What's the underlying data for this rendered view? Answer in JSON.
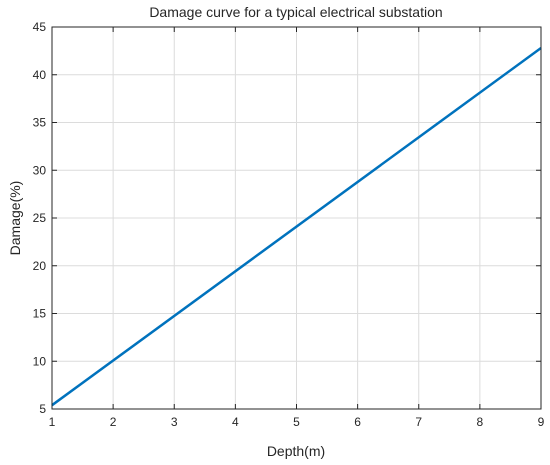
{
  "chart_data": {
    "type": "line",
    "title": "Damage curve for a typical electrical substation",
    "xlabel": "Depth(m)",
    "ylabel": "Damage(%)",
    "xlim": [
      1,
      9
    ],
    "ylim": [
      5,
      45
    ],
    "xticks": [
      1,
      2,
      3,
      4,
      5,
      6,
      7,
      8,
      9
    ],
    "yticks": [
      5,
      10,
      15,
      20,
      25,
      30,
      35,
      40,
      45
    ],
    "grid": true,
    "series": [
      {
        "color": "#0072bd",
        "x": [
          1,
          9
        ],
        "y": [
          5.4,
          42.8
        ]
      }
    ]
  }
}
